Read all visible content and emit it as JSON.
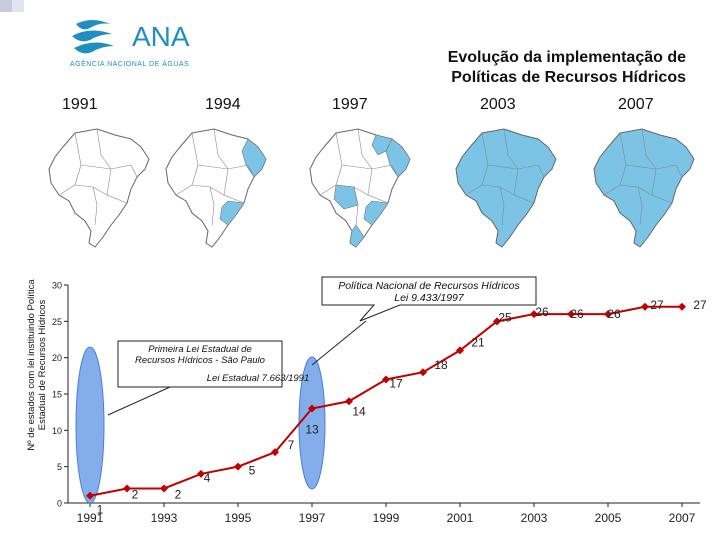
{
  "logo": {
    "name": "ANA",
    "subtitle": "AGÊNCIA NACIONAL DE ÁGUAS"
  },
  "title": {
    "line1": "Evolução da implementação de",
    "line2": "Políticas de Recursos Hídricos"
  },
  "years": [
    "1991",
    "1994",
    "1997",
    "2003",
    "2007"
  ],
  "colors": {
    "accent": "#1e8fc0",
    "map_fill": "#7cc4e6",
    "line": "#c00000",
    "ellipse": "#6f9fe8"
  },
  "ylabel": {
    "line1": "Nº de estados com lei instituindo Política",
    "line2": "Estadual de Recursos Hídricos"
  },
  "chart_data": {
    "type": "line",
    "x": [
      1991,
      1992,
      1993,
      1994,
      1995,
      1996,
      1997,
      1998,
      1999,
      2000,
      2001,
      2002,
      2003,
      2004,
      2005,
      2006,
      2007
    ],
    "y": [
      1,
      2,
      2,
      4,
      5,
      7,
      13,
      14,
      17,
      18,
      21,
      25,
      26,
      26,
      26,
      27,
      27
    ],
    "xticks": [
      "1991",
      "1993",
      "1995",
      "1997",
      "1999",
      "2001",
      "2003",
      "2005",
      "2007"
    ],
    "yticks": [
      "0",
      "5",
      "10",
      "15",
      "20",
      "25",
      "30"
    ],
    "ylim": [
      0,
      30
    ],
    "xlim": [
      1991,
      2007
    ],
    "callouts": [
      {
        "line1": "Política Nacional de Recursos Hídricos",
        "line2": "Lei 9.433/1997"
      },
      {
        "line1": "Primeira Lei Estadual de",
        "line2": "Recursos Hídricos - São Paulo",
        "line3": "Lei Estadual 7.663/1991"
      }
    ]
  }
}
